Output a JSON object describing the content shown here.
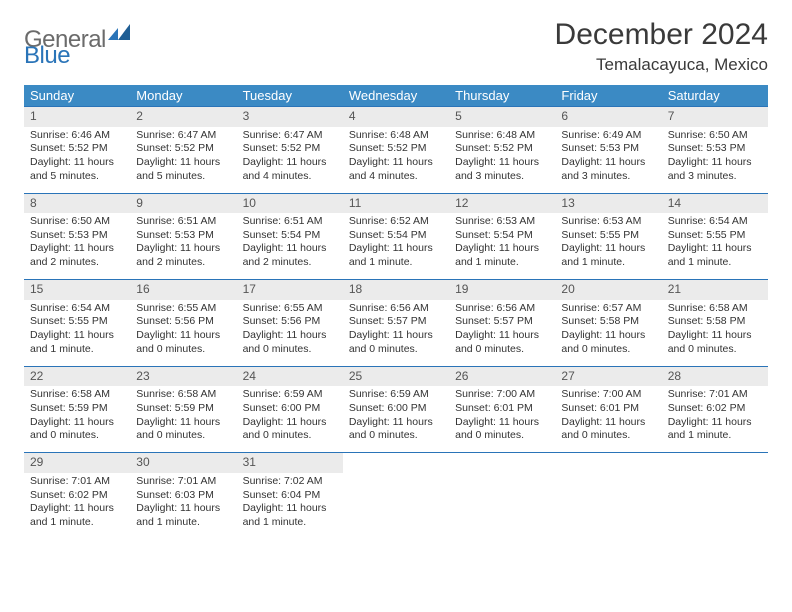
{
  "brand": {
    "part1": "General",
    "part2": "Blue"
  },
  "title": "December 2024",
  "location": "Temalacayuca, Mexico",
  "colors": {
    "header_bg": "#3b8ac4",
    "rule": "#2a74b8",
    "daynum_bg": "#ebebeb",
    "text": "#333333",
    "logo_gray": "#6b6b6b",
    "logo_blue": "#2a74b8"
  },
  "weekdays": [
    "Sunday",
    "Monday",
    "Tuesday",
    "Wednesday",
    "Thursday",
    "Friday",
    "Saturday"
  ],
  "weeks": [
    [
      {
        "n": 1,
        "sunrise": "6:46 AM",
        "sunset": "5:52 PM",
        "dl": "11 hours and 5 minutes."
      },
      {
        "n": 2,
        "sunrise": "6:47 AM",
        "sunset": "5:52 PM",
        "dl": "11 hours and 5 minutes."
      },
      {
        "n": 3,
        "sunrise": "6:47 AM",
        "sunset": "5:52 PM",
        "dl": "11 hours and 4 minutes."
      },
      {
        "n": 4,
        "sunrise": "6:48 AM",
        "sunset": "5:52 PM",
        "dl": "11 hours and 4 minutes."
      },
      {
        "n": 5,
        "sunrise": "6:48 AM",
        "sunset": "5:52 PM",
        "dl": "11 hours and 3 minutes."
      },
      {
        "n": 6,
        "sunrise": "6:49 AM",
        "sunset": "5:53 PM",
        "dl": "11 hours and 3 minutes."
      },
      {
        "n": 7,
        "sunrise": "6:50 AM",
        "sunset": "5:53 PM",
        "dl": "11 hours and 3 minutes."
      }
    ],
    [
      {
        "n": 8,
        "sunrise": "6:50 AM",
        "sunset": "5:53 PM",
        "dl": "11 hours and 2 minutes."
      },
      {
        "n": 9,
        "sunrise": "6:51 AM",
        "sunset": "5:53 PM",
        "dl": "11 hours and 2 minutes."
      },
      {
        "n": 10,
        "sunrise": "6:51 AM",
        "sunset": "5:54 PM",
        "dl": "11 hours and 2 minutes."
      },
      {
        "n": 11,
        "sunrise": "6:52 AM",
        "sunset": "5:54 PM",
        "dl": "11 hours and 1 minute."
      },
      {
        "n": 12,
        "sunrise": "6:53 AM",
        "sunset": "5:54 PM",
        "dl": "11 hours and 1 minute."
      },
      {
        "n": 13,
        "sunrise": "6:53 AM",
        "sunset": "5:55 PM",
        "dl": "11 hours and 1 minute."
      },
      {
        "n": 14,
        "sunrise": "6:54 AM",
        "sunset": "5:55 PM",
        "dl": "11 hours and 1 minute."
      }
    ],
    [
      {
        "n": 15,
        "sunrise": "6:54 AM",
        "sunset": "5:55 PM",
        "dl": "11 hours and 1 minute."
      },
      {
        "n": 16,
        "sunrise": "6:55 AM",
        "sunset": "5:56 PM",
        "dl": "11 hours and 0 minutes."
      },
      {
        "n": 17,
        "sunrise": "6:55 AM",
        "sunset": "5:56 PM",
        "dl": "11 hours and 0 minutes."
      },
      {
        "n": 18,
        "sunrise": "6:56 AM",
        "sunset": "5:57 PM",
        "dl": "11 hours and 0 minutes."
      },
      {
        "n": 19,
        "sunrise": "6:56 AM",
        "sunset": "5:57 PM",
        "dl": "11 hours and 0 minutes."
      },
      {
        "n": 20,
        "sunrise": "6:57 AM",
        "sunset": "5:58 PM",
        "dl": "11 hours and 0 minutes."
      },
      {
        "n": 21,
        "sunrise": "6:58 AM",
        "sunset": "5:58 PM",
        "dl": "11 hours and 0 minutes."
      }
    ],
    [
      {
        "n": 22,
        "sunrise": "6:58 AM",
        "sunset": "5:59 PM",
        "dl": "11 hours and 0 minutes."
      },
      {
        "n": 23,
        "sunrise": "6:58 AM",
        "sunset": "5:59 PM",
        "dl": "11 hours and 0 minutes."
      },
      {
        "n": 24,
        "sunrise": "6:59 AM",
        "sunset": "6:00 PM",
        "dl": "11 hours and 0 minutes."
      },
      {
        "n": 25,
        "sunrise": "6:59 AM",
        "sunset": "6:00 PM",
        "dl": "11 hours and 0 minutes."
      },
      {
        "n": 26,
        "sunrise": "7:00 AM",
        "sunset": "6:01 PM",
        "dl": "11 hours and 0 minutes."
      },
      {
        "n": 27,
        "sunrise": "7:00 AM",
        "sunset": "6:01 PM",
        "dl": "11 hours and 0 minutes."
      },
      {
        "n": 28,
        "sunrise": "7:01 AM",
        "sunset": "6:02 PM",
        "dl": "11 hours and 1 minute."
      }
    ],
    [
      {
        "n": 29,
        "sunrise": "7:01 AM",
        "sunset": "6:02 PM",
        "dl": "11 hours and 1 minute."
      },
      {
        "n": 30,
        "sunrise": "7:01 AM",
        "sunset": "6:03 PM",
        "dl": "11 hours and 1 minute."
      },
      {
        "n": 31,
        "sunrise": "7:02 AM",
        "sunset": "6:04 PM",
        "dl": "11 hours and 1 minute."
      },
      null,
      null,
      null,
      null
    ]
  ],
  "labels": {
    "sunrise": "Sunrise:",
    "sunset": "Sunset:",
    "daylight": "Daylight:"
  }
}
